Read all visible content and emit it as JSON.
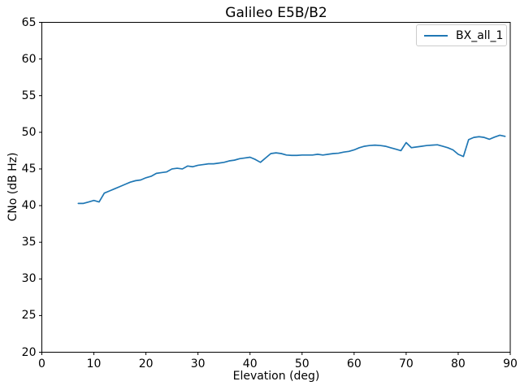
{
  "chart_data": {
    "type": "line",
    "title": "Galileo E5B/B2",
    "xlabel": "Elevation (deg)",
    "ylabel": "CNo (dB Hz)",
    "xlim": [
      0,
      90
    ],
    "ylim": [
      20,
      65
    ],
    "x_ticks": [
      0,
      10,
      20,
      30,
      40,
      50,
      60,
      70,
      80,
      90
    ],
    "y_ticks": [
      20,
      25,
      30,
      35,
      40,
      45,
      50,
      55,
      60,
      65
    ],
    "grid": false,
    "legend_position": "upper right",
    "series": [
      {
        "name": "BX_all_1",
        "color": "#1f77b4",
        "x": [
          7,
          8,
          9,
          10,
          11,
          12,
          13,
          14,
          15,
          16,
          17,
          18,
          19,
          20,
          21,
          22,
          23,
          24,
          25,
          26,
          27,
          28,
          29,
          30,
          31,
          32,
          33,
          34,
          35,
          36,
          37,
          38,
          39,
          40,
          41,
          42,
          43,
          44,
          45,
          46,
          47,
          48,
          49,
          50,
          51,
          52,
          53,
          54,
          55,
          56,
          57,
          58,
          59,
          60,
          61,
          62,
          63,
          64,
          65,
          66,
          67,
          68,
          69,
          70,
          71,
          72,
          73,
          74,
          75,
          76,
          77,
          78,
          79,
          80,
          81,
          82,
          83,
          84,
          85,
          86,
          87,
          88,
          89
        ],
        "y": [
          40.3,
          40.3,
          40.5,
          40.7,
          40.5,
          41.7,
          42.0,
          42.3,
          42.6,
          42.9,
          43.2,
          43.4,
          43.5,
          43.8,
          44.0,
          44.4,
          44.5,
          44.6,
          45.0,
          45.1,
          45.0,
          45.4,
          45.3,
          45.5,
          45.6,
          45.7,
          45.7,
          45.8,
          45.9,
          46.1,
          46.2,
          46.4,
          46.5,
          46.6,
          46.3,
          45.9,
          46.5,
          47.1,
          47.2,
          47.1,
          46.9,
          46.85,
          46.85,
          46.9,
          46.9,
          46.9,
          47.0,
          46.9,
          47.0,
          47.1,
          47.15,
          47.3,
          47.4,
          47.6,
          47.9,
          48.1,
          48.2,
          48.25,
          48.2,
          48.1,
          47.9,
          47.7,
          47.5,
          48.6,
          47.9,
          48.0,
          48.1,
          48.2,
          48.25,
          48.3,
          48.1,
          47.9,
          47.6,
          47.0,
          46.7,
          49.0,
          49.3,
          49.4,
          49.3,
          49.05,
          49.35,
          49.6,
          49.45
        ]
      }
    ]
  }
}
